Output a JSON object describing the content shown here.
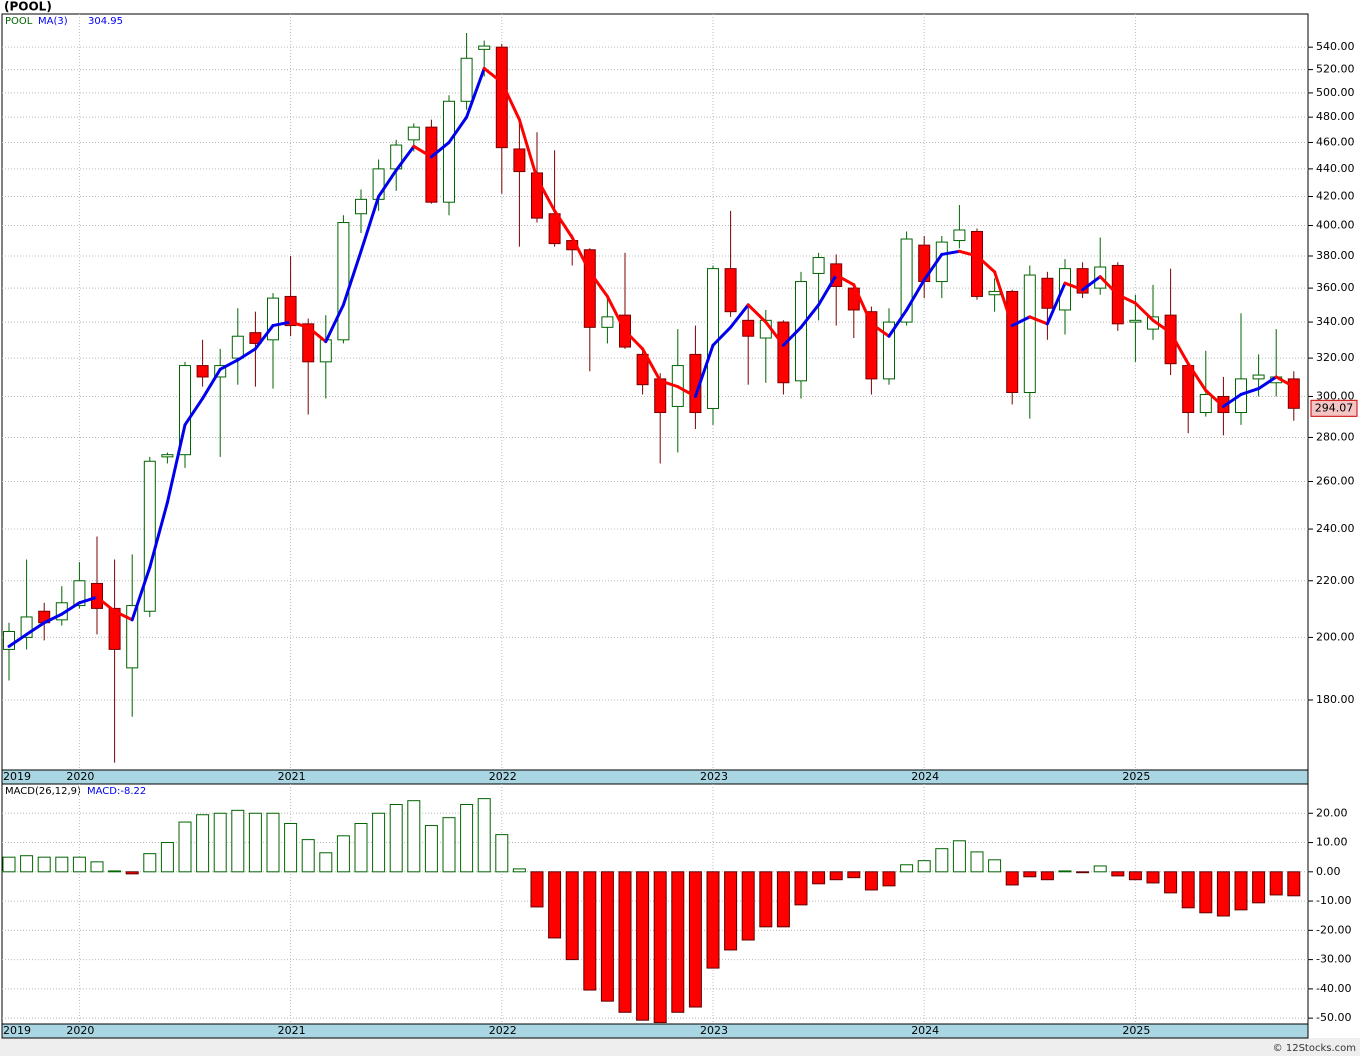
{
  "chart_data": [
    {
      "type": "candlestick",
      "title": "(POOL)",
      "name": "POOL",
      "credit": "© 12Stocks.com",
      "categories": [
        "2019",
        null,
        null,
        null,
        "2020",
        null,
        null,
        null,
        null,
        null,
        null,
        null,
        null,
        null,
        null,
        null,
        "2021",
        null,
        null,
        null,
        null,
        null,
        null,
        null,
        null,
        null,
        null,
        null,
        "2022",
        null,
        null,
        null,
        null,
        null,
        null,
        null,
        null,
        null,
        null,
        null,
        "2023",
        null,
        null,
        null,
        null,
        null,
        null,
        null,
        null,
        null,
        null,
        null,
        "2024",
        null,
        null,
        null,
        null,
        null,
        null,
        null,
        null,
        null,
        null,
        null,
        "2025",
        null,
        null,
        null,
        null,
        null,
        null,
        null,
        null,
        null
      ],
      "open": [
        196,
        200,
        209,
        206,
        211,
        219,
        210,
        190,
        209,
        271,
        272,
        316,
        310,
        320,
        334,
        330,
        355,
        339,
        318,
        330,
        408,
        418,
        440,
        462,
        472,
        416,
        493,
        538,
        540,
        455,
        437,
        408,
        390,
        384,
        337,
        344,
        322,
        309,
        295,
        322,
        294,
        372,
        341,
        331,
        340,
        308,
        369,
        375,
        360,
        346,
        309,
        340,
        387,
        364,
        390,
        396,
        356,
        358,
        302,
        366,
        347,
        372,
        360,
        374,
        340,
        336,
        344,
        316,
        292,
        300,
        292,
        309,
        307,
        309
      ],
      "high": [
        205,
        228,
        212,
        218,
        227,
        237,
        228,
        230,
        271,
        273,
        318,
        330,
        325,
        348,
        346,
        357,
        380,
        342,
        344,
        407,
        425,
        447,
        462,
        475,
        478,
        498,
        553,
        546,
        543,
        478,
        468,
        454,
        394,
        385,
        355,
        382,
        326,
        312,
        336,
        338,
        374,
        410,
        350,
        347,
        341,
        370,
        382,
        381,
        363,
        349,
        348,
        396,
        393,
        393,
        414,
        398,
        366,
        359,
        374,
        370,
        378,
        376,
        392,
        376,
        356,
        362,
        372,
        318,
        324,
        310,
        345,
        322,
        336,
        313
      ],
      "low": [
        186,
        196,
        199,
        204,
        210,
        201,
        162,
        175,
        207,
        268,
        266,
        305,
        271,
        306,
        305,
        304,
        332,
        291,
        299,
        328,
        395,
        410,
        424,
        453,
        415,
        407,
        486,
        514,
        422,
        386,
        402,
        386,
        374,
        313,
        328,
        325,
        301,
        268,
        273,
        284,
        286,
        343,
        306,
        307,
        301,
        299,
        341,
        338,
        331,
        301,
        306,
        338,
        354,
        354,
        385,
        353,
        346,
        296,
        289,
        330,
        333,
        354,
        356,
        335,
        318,
        330,
        311,
        282,
        290,
        281,
        286,
        300,
        300,
        288
      ],
      "close": [
        202,
        207,
        205,
        212,
        220,
        210,
        196,
        211,
        269,
        272,
        316,
        310,
        316,
        332,
        328,
        354,
        338,
        318,
        330,
        402,
        418,
        440,
        458,
        472,
        416,
        493,
        530,
        541,
        456,
        438,
        405,
        388,
        384,
        337,
        343,
        326,
        306,
        292,
        316,
        292,
        372,
        346,
        332,
        341,
        307,
        364,
        379,
        361,
        347,
        309,
        340,
        391,
        364,
        389,
        397,
        355,
        358,
        302,
        368,
        348,
        372,
        357,
        373,
        339,
        341,
        343,
        317,
        292,
        301,
        292,
        309,
        311,
        310,
        294.07
      ],
      "up_color": "#006400",
      "down_color": "#ff0000",
      "last_price_label": "294.07",
      "ma": {
        "name": "MA(3)",
        "last_label": "304.95",
        "up_color": "#0000ee",
        "down_color": "#ff0000",
        "values": [
          197,
          201,
          205,
          208,
          212,
          214,
          209,
          206,
          225,
          251,
          286,
          299,
          314,
          319,
          325,
          338,
          340,
          337,
          329,
          350,
          383,
          420,
          439,
          457,
          449,
          460,
          480,
          521,
          509,
          478,
          433,
          410,
          392,
          370,
          355,
          335,
          325,
          308,
          305,
          300,
          327,
          337,
          350,
          340,
          327,
          337,
          350,
          368,
          362,
          339,
          332,
          347,
          365,
          381,
          383,
          380,
          370,
          338,
          343,
          339,
          363,
          359,
          367,
          356,
          351,
          341,
          334,
          317,
          303,
          295,
          301,
          304,
          310,
          304.95
        ]
      },
      "log_scale": true,
      "grid": true,
      "ylim": [
        160,
        571
      ],
      "yticks": [
        {
          "value": 180,
          "label": "180.00"
        },
        {
          "value": 200,
          "label": "200.00"
        },
        {
          "value": 220,
          "label": "220.00"
        },
        {
          "value": 240,
          "label": "240.00"
        },
        {
          "value": 260,
          "label": "260.00"
        },
        {
          "value": 280,
          "label": "280.00"
        },
        {
          "value": 300,
          "label": "300.00"
        },
        {
          "value": 320,
          "label": "320.00"
        },
        {
          "value": 340,
          "label": "340.00"
        },
        {
          "value": 360,
          "label": "360.00"
        },
        {
          "value": 380,
          "label": "380.00"
        },
        {
          "value": 400,
          "label": "400.00"
        },
        {
          "value": 420,
          "label": "420.00"
        },
        {
          "value": 440,
          "label": "440.00"
        },
        {
          "value": 460,
          "label": "460.00"
        },
        {
          "value": 480,
          "label": "480.00"
        },
        {
          "value": 500,
          "label": "500.00"
        },
        {
          "value": 520,
          "label": "520.00"
        },
        {
          "value": 540,
          "label": "540.00"
        }
      ]
    },
    {
      "type": "bar",
      "title": "MACD(26,12,9)",
      "value_label": "MACD:-8.22",
      "categories": [
        "2019",
        null,
        null,
        null,
        "2020",
        null,
        null,
        null,
        null,
        null,
        null,
        null,
        null,
        null,
        null,
        null,
        "2021",
        null,
        null,
        null,
        null,
        null,
        null,
        null,
        null,
        null,
        null,
        null,
        "2022",
        null,
        null,
        null,
        null,
        null,
        null,
        null,
        null,
        null,
        null,
        null,
        "2023",
        null,
        null,
        null,
        null,
        null,
        null,
        null,
        null,
        null,
        null,
        null,
        "2024",
        null,
        null,
        null,
        null,
        null,
        null,
        null,
        null,
        null,
        null,
        null,
        "2025",
        null,
        null,
        null,
        null,
        null,
        null,
        null,
        null,
        null
      ],
      "values": [
        5,
        5.5,
        5,
        5,
        5,
        3.4,
        0.3,
        -0.7,
        6.2,
        10,
        17,
        19.5,
        20,
        21,
        20,
        20,
        16.5,
        11,
        6.5,
        12.3,
        16.5,
        20,
        23,
        24.3,
        15.8,
        18.5,
        23,
        25,
        12.7,
        1,
        -12,
        -22.6,
        -30,
        -40.4,
        -44.2,
        -48,
        -50.7,
        -51.5,
        -48,
        -46.2,
        -32.9,
        -26.7,
        -23.3,
        -18.8,
        -18.8,
        -11.3,
        -4.1,
        -2.7,
        -2,
        -6.2,
        -4.8,
        2.4,
        3.8,
        7.9,
        10.6,
        6.8,
        4.1,
        -4.5,
        -1.7,
        -2.7,
        0.3,
        -0.3,
        2,
        -1.4,
        -2.7,
        -3.8,
        -7.2,
        -12.3,
        -14,
        -15.1,
        -13,
        -10.6,
        -7.9,
        -8.2
      ],
      "up_color": "#006400",
      "down_color": "#ff0000",
      "grid": true,
      "ylim": [
        -52,
        30
      ],
      "yticks": [
        {
          "value": 20,
          "label": "20.00"
        },
        {
          "value": 10,
          "label": "10.00"
        },
        {
          "value": 0,
          "label": "0.00"
        },
        {
          "value": -10,
          "label": "-10.00"
        },
        {
          "value": -20,
          "label": "-20.00"
        },
        {
          "value": -30,
          "label": "-30.00"
        },
        {
          "value": -40,
          "label": "-40.00"
        },
        {
          "value": -50,
          "label": "-50.00"
        }
      ]
    }
  ]
}
